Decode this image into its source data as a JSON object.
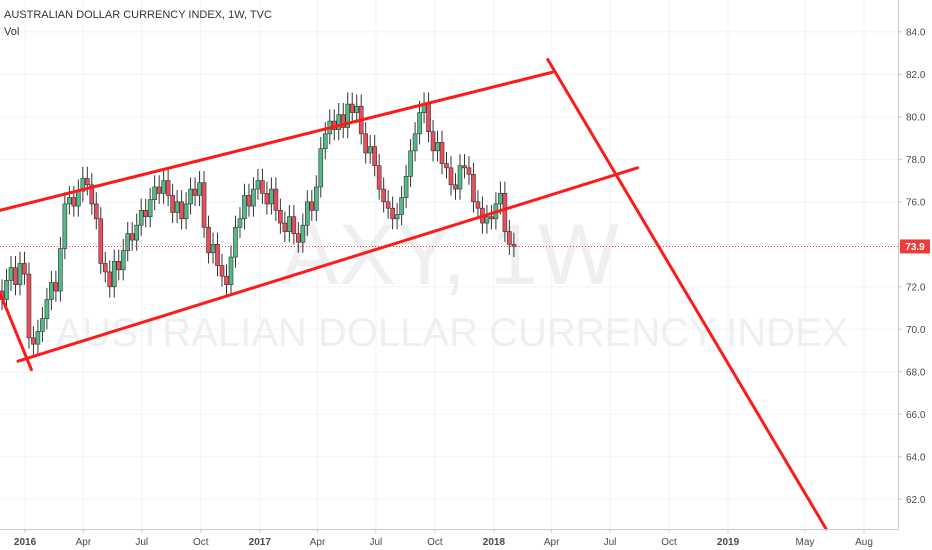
{
  "header": {
    "title": "AUSTRALIAN DOLLAR CURRENCY INDEX, 1W, TVC",
    "volume_label": "Vol"
  },
  "watermark": {
    "symbol": "AXY, 1W",
    "name": "AUSTRALIAN DOLLAR CURRENCY INDEX"
  },
  "colors": {
    "up": "#53b987",
    "down": "#eb4d5c",
    "candle_border": "#333333",
    "trendline": "#ff1a1a",
    "price_marker": "#ee3a3a",
    "grid": "#f0f3fa",
    "axis": "#c9c9c9"
  },
  "chart_data": {
    "type": "candlestick",
    "title": "AUSTRALIAN DOLLAR CURRENCY INDEX, 1W, TVC",
    "interval": "1W",
    "x_range": [
      "2015-11-23",
      "2019-09-23"
    ],
    "ylim": [
      60.6,
      85.5
    ],
    "grid": true,
    "y_ticks": [
      "62.0",
      "64.0",
      "66.0",
      "68.0",
      "70.0",
      "72.0",
      "74.0",
      "76.0",
      "78.0",
      "80.0",
      "82.0",
      "84.0"
    ],
    "x_ticks": [
      {
        "label": "2016",
        "date": "2016-01-01",
        "major": true
      },
      {
        "label": "Apr",
        "date": "2016-04-01",
        "major": false
      },
      {
        "label": "Jul",
        "date": "2016-07-01",
        "major": false
      },
      {
        "label": "Oct",
        "date": "2016-10-01",
        "major": false
      },
      {
        "label": "2017",
        "date": "2017-01-01",
        "major": true
      },
      {
        "label": "Apr",
        "date": "2017-04-01",
        "major": false
      },
      {
        "label": "Jul",
        "date": "2017-07-01",
        "major": false
      },
      {
        "label": "Oct",
        "date": "2017-10-01",
        "major": false
      },
      {
        "label": "2018",
        "date": "2018-01-01",
        "major": true
      },
      {
        "label": "Apr",
        "date": "2018-04-01",
        "major": false
      },
      {
        "label": "Jul",
        "date": "2018-07-01",
        "major": false
      },
      {
        "label": "Oct",
        "date": "2018-10-01",
        "major": false
      },
      {
        "label": "2019",
        "date": "2019-01-01",
        "major": true
      },
      {
        "label": "May",
        "date": "2019-05-01",
        "major": false
      },
      {
        "label": "Aug",
        "date": "2019-08-01",
        "major": false
      }
    ],
    "last_price": 73.9,
    "last_price_label": "73.9",
    "closes": [
      71.4,
      72.3,
      72.9,
      72.1,
      73.1,
      72.6,
      69.6,
      69.3,
      69.9,
      70.5,
      71.4,
      72.2,
      71.8,
      73.8,
      75.9,
      76.2,
      75.8,
      76.5,
      77.1,
      76.8,
      75.9,
      75.2,
      73.1,
      72.7,
      72.0,
      73.2,
      72.8,
      73.7,
      74.5,
      74.2,
      74.9,
      75.6,
      75.3,
      76.1,
      76.7,
      76.4,
      77.0,
      76.3,
      75.5,
      76.0,
      75.2,
      75.9,
      76.6,
      76.3,
      76.9,
      74.8,
      73.6,
      74.0,
      73.0,
      72.5,
      72.1,
      73.4,
      74.8,
      75.2,
      76.3,
      75.8,
      76.6,
      77.0,
      76.4,
      75.9,
      76.6,
      75.6,
      75.0,
      74.6,
      75.3,
      74.5,
      74.1,
      74.9,
      76.0,
      75.6,
      76.7,
      78.5,
      79.2,
      79.8,
      79.4,
      80.1,
      79.5,
      80.6,
      80.2,
      80.5,
      79.2,
      78.3,
      78.6,
      77.7,
      76.6,
      76.0,
      75.7,
      75.2,
      75.4,
      76.2,
      77.2,
      78.4,
      79.2,
      80.2,
      80.6,
      79.3,
      78.4,
      78.8,
      77.8,
      77.6,
      76.8,
      76.6,
      77.7,
      77.6,
      77.3,
      76.0,
      75.7,
      75.0,
      75.3,
      75.2,
      75.9,
      76.4,
      74.6,
      74.0,
      73.9
    ],
    "series": [
      {
        "name": "OHLC",
        "values": "candles from closes"
      }
    ],
    "trendlines": [
      {
        "x1": "2015-11-23",
        "y1": 75.6,
        "x2": "2018-04-02",
        "y2": 82.1
      },
      {
        "x1": "2015-12-21",
        "y1": 68.5,
        "x2": "2018-08-13",
        "y2": 77.6
      },
      {
        "x1": "2015-11-23",
        "y1": 71.7,
        "x2": "2016-01-11",
        "y2": 68.1
      },
      {
        "x1": "2018-03-26",
        "y1": 82.7,
        "x2": "2019-06-03",
        "y2": 60.6
      }
    ]
  }
}
